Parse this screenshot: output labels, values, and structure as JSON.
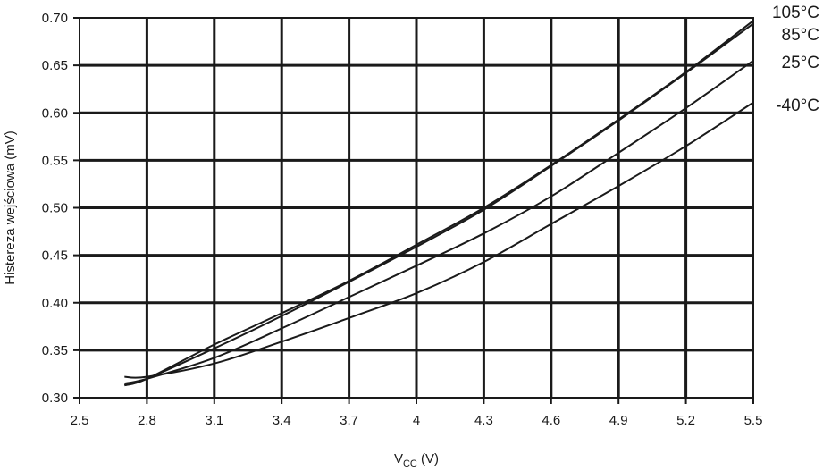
{
  "chart_data": {
    "type": "line",
    "xlabel": "V",
    "xlabel_sub": "CC",
    "xlabel_unit": " (V)",
    "ylabel": "Histereza wejściowa (mV)",
    "xlim": [
      2.5,
      5.5
    ],
    "ylim": [
      0.3,
      0.7
    ],
    "x_ticks": [
      2.5,
      2.8,
      3.1,
      3.4,
      3.7,
      4.0,
      4.3,
      4.6,
      4.9,
      5.2,
      5.5
    ],
    "x_tick_labels": [
      "2.5",
      "2.8",
      "3.1",
      "3.4",
      "3.7",
      "4",
      "4.3",
      "4.6",
      "4.9",
      "5.2",
      "5.5"
    ],
    "y_ticks": [
      0.3,
      0.35,
      0.4,
      0.45,
      0.5,
      0.55,
      0.6,
      0.65,
      0.7
    ],
    "y_tick_labels": [
      "0.30",
      "0.35",
      "0.40",
      "0.45",
      "0.50",
      "0.55",
      "0.60",
      "0.65",
      "0.70"
    ],
    "grid": true,
    "series": [
      {
        "name": "105°C",
        "x": [
          2.7,
          2.8,
          3.1,
          3.4,
          3.7,
          4.0,
          4.3,
          4.6,
          4.9,
          5.2,
          5.5
        ],
        "y": [
          0.313,
          0.32,
          0.356,
          0.389,
          0.423,
          0.461,
          0.5,
          0.545,
          0.593,
          0.643,
          0.697
        ]
      },
      {
        "name": "85°C",
        "x": [
          2.7,
          2.8,
          3.1,
          3.4,
          3.7,
          4.0,
          4.3,
          4.6,
          4.9,
          5.2,
          5.5
        ],
        "y": [
          0.313,
          0.32,
          0.352,
          0.386,
          0.422,
          0.459,
          0.498,
          0.544,
          0.592,
          0.642,
          0.694
        ]
      },
      {
        "name": "25°C",
        "x": [
          2.7,
          2.8,
          3.1,
          3.4,
          3.7,
          4.0,
          4.3,
          4.6,
          4.9,
          5.2,
          5.5
        ],
        "y": [
          0.315,
          0.32,
          0.342,
          0.373,
          0.406,
          0.439,
          0.473,
          0.512,
          0.558,
          0.605,
          0.655
        ]
      },
      {
        "name": "-40°C",
        "x": [
          2.7,
          2.8,
          3.1,
          3.4,
          3.7,
          4.0,
          4.3,
          4.6,
          4.9,
          5.2,
          5.5
        ],
        "y": [
          0.322,
          0.322,
          0.336,
          0.359,
          0.384,
          0.41,
          0.443,
          0.483,
          0.523,
          0.565,
          0.611
        ]
      }
    ]
  }
}
